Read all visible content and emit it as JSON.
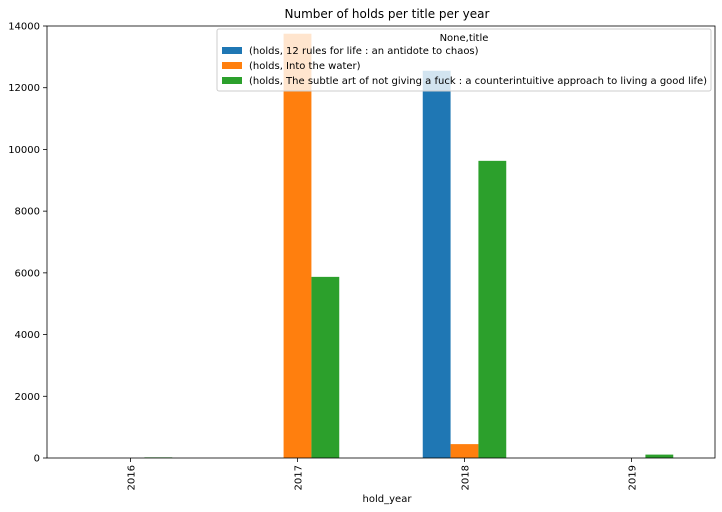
{
  "chart_data": {
    "type": "bar",
    "title": "Number of holds per title per year",
    "xlabel": "hold_year",
    "ylabel": "",
    "categories": [
      "2016",
      "2017",
      "2018",
      "2019"
    ],
    "ylim": [
      0,
      14000
    ],
    "yticks": [
      0,
      2000,
      4000,
      6000,
      8000,
      10000,
      12000,
      14000
    ],
    "legend_title": "None,title",
    "legend_position": "top-right",
    "grid": false,
    "series": [
      {
        "name": "(holds, 12 rules for life : an antidote to chaos)",
        "color": "#1f77b4",
        "values": [
          0,
          0,
          12550,
          0
        ]
      },
      {
        "name": "(holds, Into the water)",
        "color": "#ff7f0e",
        "values": [
          0,
          13750,
          450,
          0
        ]
      },
      {
        "name": "(holds, The subtle art of not giving a fuck : a counterintuitive approach to living a good life)",
        "color": "#2ca02c",
        "values": [
          20,
          5870,
          9630,
          110
        ]
      }
    ]
  }
}
